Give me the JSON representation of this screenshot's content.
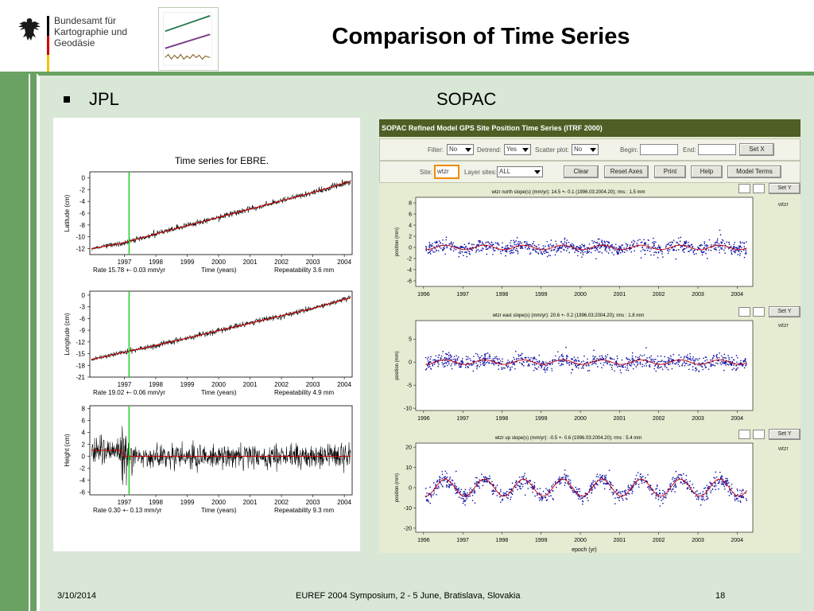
{
  "header": {
    "agency_line1": "Bundesamt für",
    "agency_line2": "Kartographie und Geodäsie",
    "title": "Comparison of Time Series"
  },
  "labels": {
    "left": "JPL",
    "right": "SOPAC"
  },
  "footer": {
    "date": "3/10/2014",
    "center": "EUREF 2004 Symposium, 2 - 5  June, Bratislava, Slovakia",
    "page": "18"
  },
  "colors": {
    "band_green": "#69a262",
    "content_bg": "#d9e8d6",
    "sopac_header": "#4e5e24",
    "fit_red": "#cc0000",
    "sopac_points": "#1a1aa8"
  },
  "sopac_ui": {
    "header": "SOPAC Refined Model GPS Site Position Time Series (ITRF 2000)",
    "filter_label": "Filter:",
    "filter_value": "No",
    "detrend_label": "Detrend:",
    "detrend_value": "Yes",
    "scatter_label": "Scatter plot:",
    "scatter_value": "No",
    "begin_label": "Begin:",
    "end_label": "End:",
    "setx_button": "Set X",
    "site_label": "Site:",
    "site_value": "wtzr",
    "layer_label": "Layer sites:",
    "layer_value": "ALL",
    "buttons": [
      "Clear",
      "Reset Axes",
      "Print",
      "Help",
      "Model Terms"
    ],
    "sety_button": "Set Y",
    "site_tag": "wtzr"
  },
  "chart_data": [
    {
      "type": "line",
      "panel": "JPL",
      "title": "Time series for EBRE.",
      "ylabel": "Latitude (cm)",
      "xlabel": "Time (years)",
      "x_ticks": [
        "1997",
        "1998",
        "1999",
        "2000",
        "2001",
        "2002",
        "2003",
        "2004"
      ],
      "y_ticks": [
        0,
        -2,
        -4,
        -6,
        -8,
        -10,
        -12
      ],
      "xlim": [
        1995.9,
        2004.25
      ],
      "ylim": [
        -13,
        1
      ],
      "series": [
        {
          "x": [
            1995.95,
            1996.9,
            1998,
            1999,
            2000,
            2001,
            2002,
            2003,
            2004.2
          ],
          "values": [
            -12,
            -11.1,
            -9.5,
            -8.1,
            -6.7,
            -5.3,
            -3.9,
            -2.5,
            -0.6
          ]
        }
      ],
      "rate_text": "Rate 15.78 +- 0.03 mm/yr",
      "repeatability_text": "Repeatability 3.6 mm"
    },
    {
      "type": "line",
      "panel": "JPL",
      "ylabel": "Longitude (cm)",
      "xlabel": "Time (years)",
      "x_ticks": [
        "1997",
        "1998",
        "1999",
        "2000",
        "2001",
        "2002",
        "2003",
        "2004"
      ],
      "y_ticks": [
        0,
        -3,
        -6,
        -9,
        -12,
        -15,
        -18,
        -21
      ],
      "xlim": [
        1995.9,
        2004.25
      ],
      "ylim": [
        -21,
        1
      ],
      "series": [
        {
          "x": [
            1995.95,
            1996.9,
            1998,
            1999,
            2000,
            2001,
            2002,
            2003,
            2004.2
          ],
          "values": [
            -16.5,
            -14.8,
            -12.9,
            -11,
            -9.1,
            -7.2,
            -5.3,
            -3.4,
            -0.7
          ]
        }
      ],
      "rate_text": "Rate 19.02 +- 0.06 mm/yr",
      "repeatability_text": "Repeatability 4.9 mm"
    },
    {
      "type": "line",
      "panel": "JPL",
      "ylabel": "Height (cm)",
      "xlabel": "Time (years)",
      "x_ticks": [
        "1997",
        "1998",
        "1999",
        "2000",
        "2001",
        "2002",
        "2003",
        "2004"
      ],
      "y_ticks": [
        8,
        6,
        4,
        2,
        0,
        -2,
        -4,
        -6
      ],
      "xlim": [
        1995.9,
        2004.25
      ],
      "ylim": [
        -6.5,
        8.5
      ],
      "series": [
        {
          "x": [
            1995.95,
            1996.9,
            1997.0,
            2004.2
          ],
          "values": [
            1,
            1,
            0,
            0
          ]
        }
      ],
      "rate_text": "Rate 0.30 +- 0.13 mm/yr",
      "repeatability_text": "Repeatability 9.3 mm"
    },
    {
      "type": "scatter",
      "panel": "SOPAC",
      "title": "wtzr north slope(s) (mm/yr): 14.5 +- 0.1 (1996.03:2004.20); rms : 1.5 mm",
      "ylabel": "position (mm)",
      "x_ticks": [
        "1996",
        "1997",
        "1998",
        "1999",
        "2000",
        "2001",
        "2002",
        "2003",
        "2004"
      ],
      "y_ticks": [
        8,
        6,
        4,
        2,
        0,
        -2,
        -4,
        -6
      ],
      "xlim": [
        1995.8,
        2004.4
      ],
      "ylim": [
        -7,
        9
      ]
    },
    {
      "type": "scatter",
      "panel": "SOPAC",
      "title": "wtzr east slope(s) (mm/yr): 20.6 +- 0.2 (1996.03:2004.20); rms : 1.8 mm",
      "ylabel": "position (mm)",
      "x_ticks": [
        "1996",
        "1997",
        "1998",
        "1999",
        "2000",
        "2001",
        "2002",
        "2003",
        "2004"
      ],
      "y_ticks": [
        5,
        0,
        -5,
        -10
      ],
      "xlim": [
        1995.8,
        2004.4
      ],
      "ylim": [
        -10.5,
        9
      ]
    },
    {
      "type": "scatter",
      "panel": "SOPAC",
      "title": "wtzr up slope(s) (mm/yr): -0.5 +- 0.6 (1996.03:2004.20); rms : 5.4 mm",
      "ylabel": "position (mm)",
      "xlabel": "epoch (yr)",
      "x_ticks": [
        "1996",
        "1997",
        "1998",
        "1999",
        "2000",
        "2001",
        "2002",
        "2003",
        "2004"
      ],
      "y_ticks": [
        20,
        10,
        0,
        -10,
        -20
      ],
      "xlim": [
        1995.8,
        2004.4
      ],
      "ylim": [
        -22,
        22
      ]
    }
  ]
}
